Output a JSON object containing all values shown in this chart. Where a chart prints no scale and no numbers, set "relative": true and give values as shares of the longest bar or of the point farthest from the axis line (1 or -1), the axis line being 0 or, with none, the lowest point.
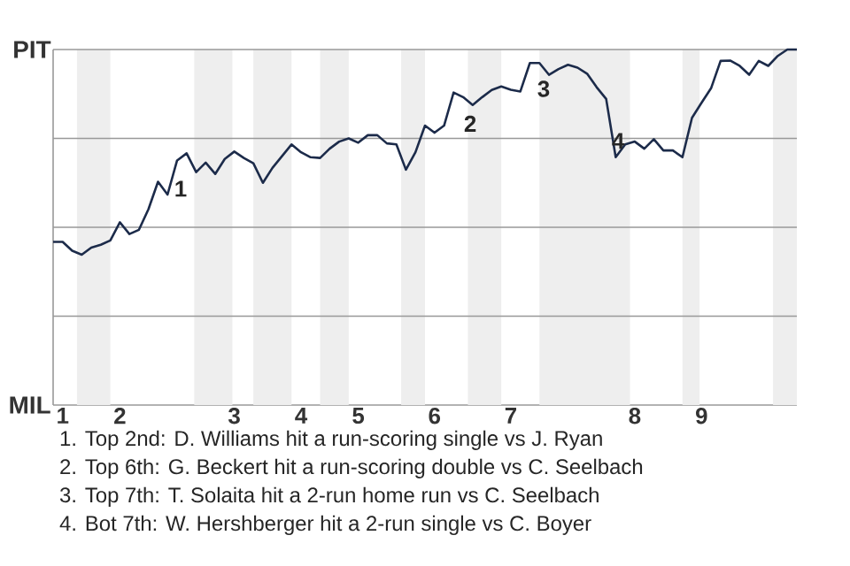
{
  "chart_data": {
    "type": "line",
    "relative": true,
    "categories": [
      null,
      "1",
      null,
      null,
      null,
      null,
      null,
      "2",
      null,
      null,
      null,
      null,
      null,
      null,
      null,
      null,
      null,
      null,
      null,
      "3",
      null,
      null,
      null,
      null,
      null,
      null,
      "4",
      null,
      null,
      null,
      null,
      null,
      "5",
      null,
      null,
      null,
      null,
      null,
      null,
      null,
      "6",
      null,
      null,
      null,
      null,
      null,
      null,
      null,
      "7",
      null,
      null,
      null,
      null,
      null,
      null,
      null,
      null,
      null,
      null,
      null,
      null,
      "8",
      null,
      null,
      null,
      null,
      null,
      null,
      "9",
      null,
      null,
      null,
      null,
      null,
      null,
      null,
      null,
      null,
      null
    ],
    "series": [
      {
        "color": "#1c2b4a",
        "values": [
          0.459,
          0.459,
          0.434,
          0.423,
          0.443,
          0.451,
          0.463,
          0.514,
          0.481,
          0.493,
          0.551,
          0.628,
          0.592,
          0.688,
          0.708,
          0.655,
          0.682,
          0.65,
          0.692,
          0.713,
          0.695,
          0.68,
          0.625,
          0.667,
          0.7,
          0.733,
          0.711,
          0.697,
          0.695,
          0.721,
          0.741,
          0.75,
          0.738,
          0.759,
          0.759,
          0.736,
          0.733,
          0.662,
          0.711,
          0.786,
          0.766,
          0.786,
          0.879,
          0.866,
          0.844,
          0.866,
          0.886,
          0.896,
          0.887,
          0.882,
          0.962,
          0.962,
          0.929,
          0.945,
          0.957,
          0.949,
          0.932,
          0.894,
          0.861,
          0.697,
          0.733,
          0.741,
          0.721,
          0.748,
          0.716,
          0.716,
          0.697,
          0.808,
          0.85,
          0.891,
          0.968,
          0.969,
          0.954,
          0.929,
          0.968,
          0.954,
          0.982,
          1.0,
          1.0
        ]
      }
    ],
    "grid": "y",
    "marker": "none",
    "line_style": "solid",
    "annotations": [
      "PIT",
      "MIL",
      "1",
      "2",
      "3",
      "4",
      "1. Top 2nd: D. Williams hit a run-scoring single vs J. Ryan",
      "2. Top 6th: G. Beckert hit a run-scoring double vs C. Seelbach",
      "3. Top 7th: T. Solaita hit a 2-run home run vs C. Seelbach",
      "4. Bot 7th: W. Hershberger hit a 2-run single vs C. Boyer"
    ]
  }
}
